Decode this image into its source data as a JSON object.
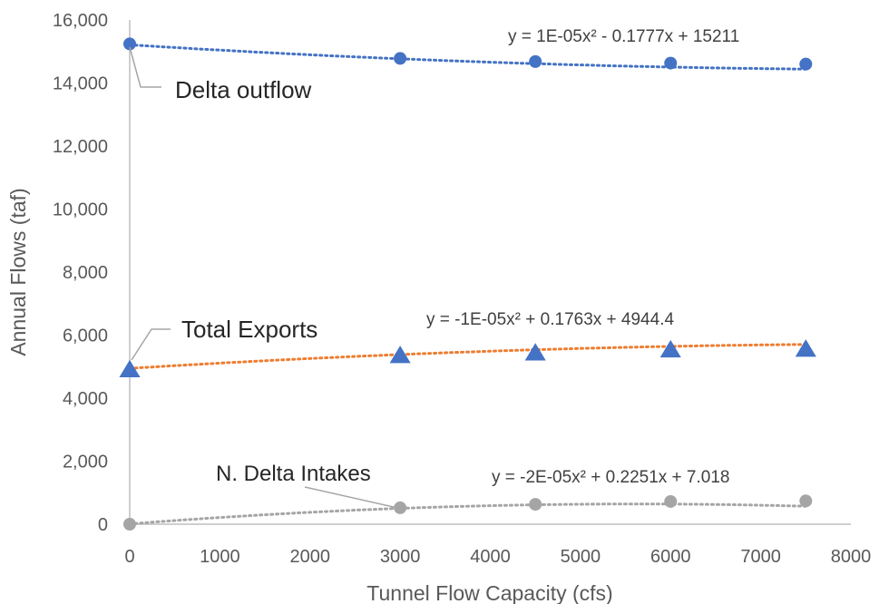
{
  "chart_data": {
    "type": "scatter",
    "xlabel": "Tunnel Flow Capacity (cfs)",
    "ylabel": "Annual Flows (taf)",
    "xlim": [
      0,
      8000
    ],
    "ylim": [
      0,
      16000
    ],
    "x_ticks": [
      "0",
      "1000",
      "2000",
      "3000",
      "4000",
      "5000",
      "6000",
      "7000",
      "8000"
    ],
    "y_ticks": [
      "0",
      "2,000",
      "4,000",
      "6,000",
      "8,000",
      "10,000",
      "12,000",
      "14,000",
      "16,000"
    ],
    "grid": false,
    "legend": "none",
    "series": [
      {
        "label": "Delta outflow",
        "marker": "circle",
        "color": "#4472C4",
        "trend_color": "#4472C4",
        "x": [
          0,
          3000,
          4500,
          6000,
          7500
        ],
        "y": [
          15240,
          14780,
          14680,
          14630,
          14600
        ],
        "trendline": {
          "a": 1e-05,
          "b": -0.1777,
          "c": 15211
        },
        "equation": "y = 1E-05x² - 0.1777x + 15211"
      },
      {
        "label": "Total Exports",
        "marker": "triangle",
        "color": "#4472C4",
        "trend_color": "#ED7D31",
        "x": [
          0,
          3000,
          4500,
          6000,
          7500
        ],
        "y": [
          4900,
          5350,
          5430,
          5530,
          5550
        ],
        "trendline": {
          "a": -1e-05,
          "b": 0.1763,
          "c": 4944.4
        },
        "equation": "y = -1E-05x² + 0.1763x + 4944.4"
      },
      {
        "label": "N. Delta Intakes",
        "marker": "circle",
        "color": "#A5A5A5",
        "trend_color": "#A5A5A5",
        "x": [
          0,
          3000,
          4500,
          6000,
          7500
        ],
        "y": [
          0,
          520,
          630,
          720,
          740
        ],
        "trendline": {
          "a": -2e-05,
          "b": 0.2251,
          "c": 7.018
        },
        "equation": "y = -2E-05x² + 0.2251x + 7.018"
      }
    ]
  }
}
